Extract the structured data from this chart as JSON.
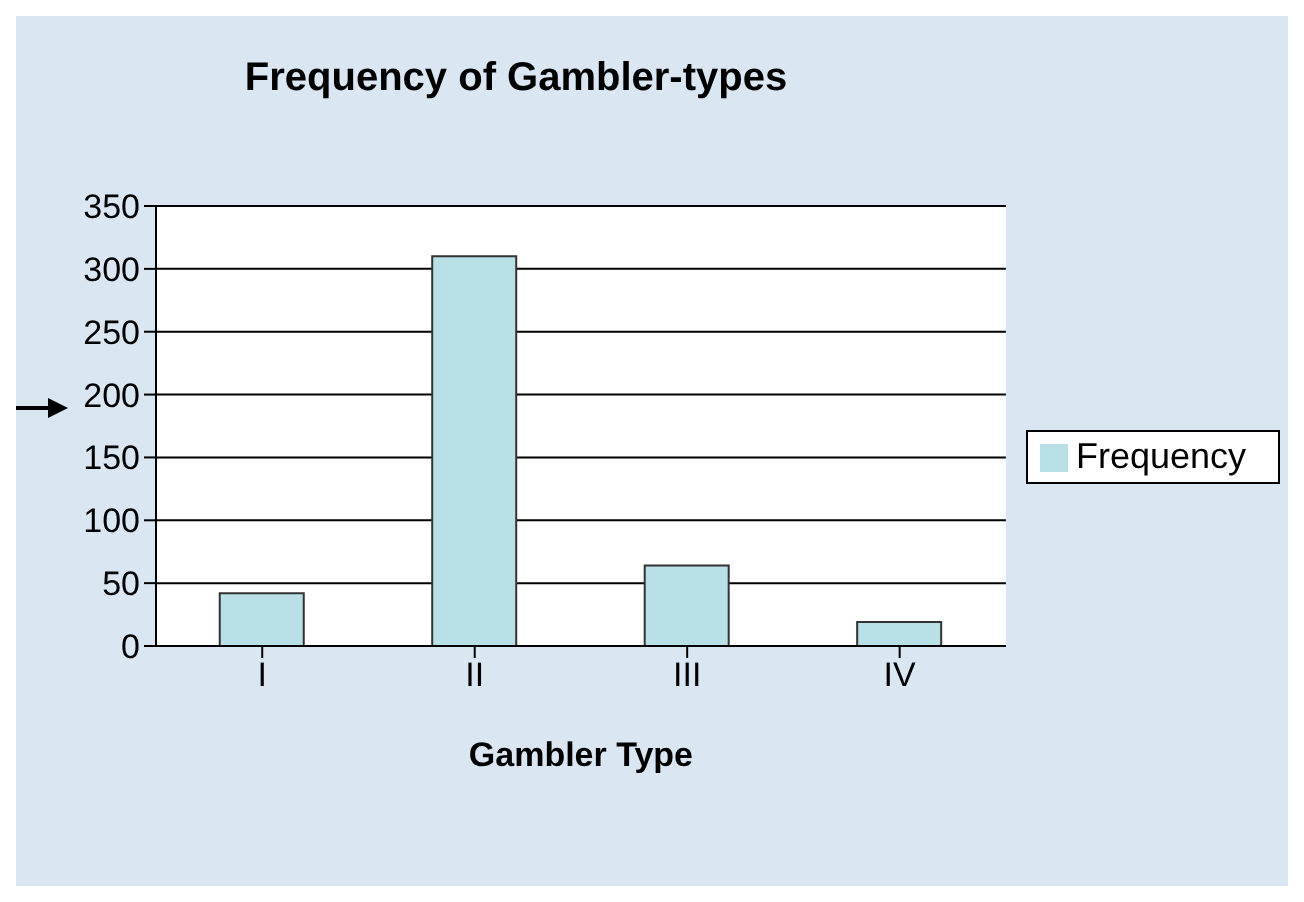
{
  "chart_data": {
    "type": "bar",
    "title": "Frequency of Gambler-types",
    "xlabel": "Gambler Type",
    "categories": [
      "I",
      "II",
      "III",
      "IV"
    ],
    "series": [
      {
        "name": "Frequency",
        "color": "#b8e0e6",
        "values": [
          42,
          310,
          64,
          19
        ]
      }
    ],
    "ylim": [
      0,
      350
    ],
    "yticks": [
      0,
      50,
      100,
      150,
      200,
      250,
      300,
      350
    ],
    "grid": "y",
    "legend": "right"
  }
}
